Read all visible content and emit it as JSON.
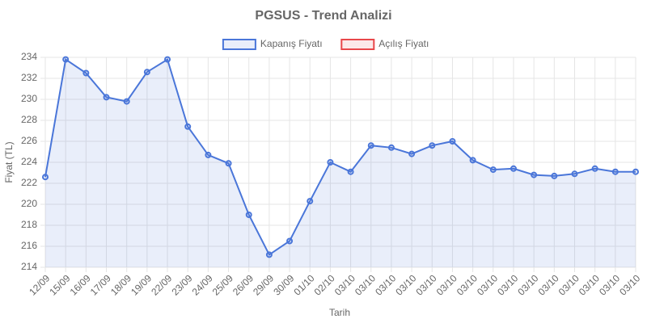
{
  "chart_data": {
    "type": "line",
    "title": "PGSUS - Trend Analizi",
    "x_label": "Tarih",
    "y_label": "Fiyat (TL)",
    "categories": [
      "12/09",
      "15/09",
      "16/09",
      "17/09",
      "18/09",
      "19/09",
      "22/09",
      "23/09",
      "24/09",
      "25/09",
      "26/09",
      "29/09",
      "30/09",
      "01/10",
      "02/10",
      "03/10",
      "03/10",
      "03/10",
      "03/10",
      "03/10",
      "03/10",
      "03/10",
      "03/10",
      "03/10",
      "03/10",
      "03/10",
      "03/10",
      "03/10",
      "03/10",
      "03/10"
    ],
    "series": [
      {
        "name": "Kapanış Fiyatı",
        "color": "#4a76d9",
        "fill": "rgba(74,118,217,0.12)",
        "values": [
          222.6,
          233.8,
          232.5,
          230.2,
          229.8,
          232.6,
          233.8,
          227.4,
          224.7,
          223.9,
          219.0,
          215.2,
          216.5,
          220.3,
          224.0,
          223.1,
          225.6,
          225.4,
          224.8,
          225.6,
          226.0,
          224.2,
          223.3,
          223.4,
          222.8,
          222.7,
          222.9,
          223.4,
          223.1,
          223.1
        ]
      },
      {
        "name": "Açılış Fiyatı",
        "color": "#e8474a",
        "fill": "rgba(232,71,74,0.12)",
        "values": [
          null,
          null,
          null,
          null,
          null,
          null,
          null,
          null,
          null,
          null,
          null,
          null,
          null,
          null,
          null,
          null,
          null,
          null,
          null,
          null,
          null,
          null,
          null,
          null,
          null,
          null,
          null,
          null,
          null,
          null
        ]
      }
    ],
    "ylim": [
      214,
      234
    ],
    "yticks": [
      214,
      216,
      218,
      220,
      222,
      224,
      226,
      228,
      230,
      232,
      234
    ],
    "grid": true,
    "legend": "top"
  }
}
